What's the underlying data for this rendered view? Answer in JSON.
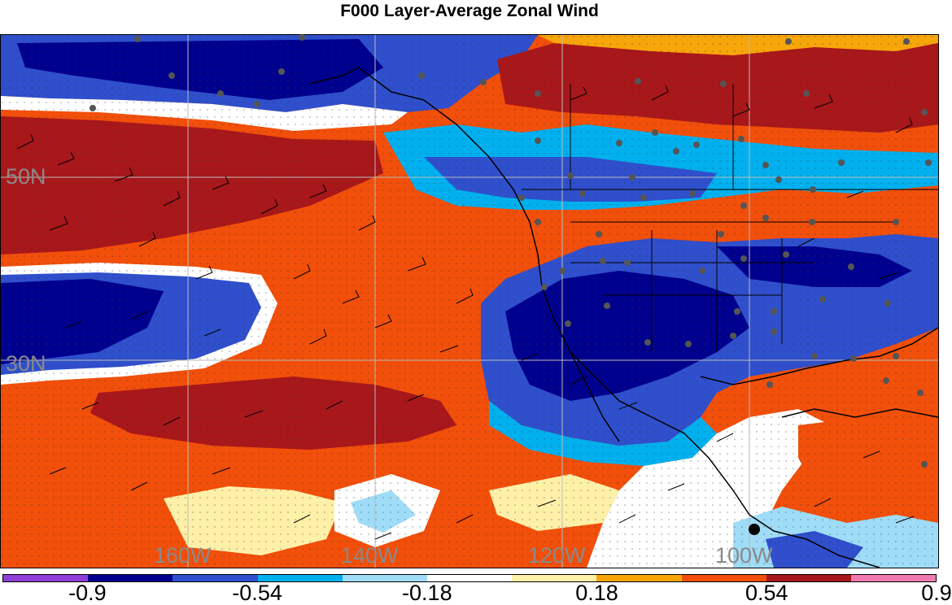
{
  "title": "F000 Layer-Average Zonal Wind",
  "map": {
    "lat_labels": [
      "50N",
      "30N"
    ],
    "lon_labels": [
      "160W",
      "140W",
      "120W",
      "100W"
    ]
  },
  "colorbar": {
    "colors": [
      "#8f3fd6",
      "#00008e",
      "#2f4fcc",
      "#00b0ee",
      "#9fdcf7",
      "#ffffff",
      "#fff0a8",
      "#f7a60a",
      "#f14f0a",
      "#a8171a",
      "#f07ab0"
    ],
    "labels": [
      "-0.9",
      "-0.54",
      "-0.18",
      "0.18",
      "0.54",
      "0.9"
    ]
  },
  "palette": {
    "dark_blue": "#00008e",
    "blue": "#2f4fcc",
    "cyan": "#00b0ee",
    "light_blue": "#9fdcf7",
    "light_yellow": "#fff0a8",
    "orange": "#f7a60a",
    "red_orange": "#f14f0a",
    "dark_red": "#a8171a"
  }
}
